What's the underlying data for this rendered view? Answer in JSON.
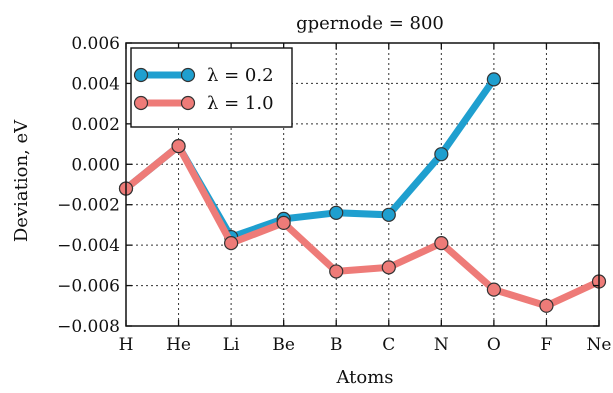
{
  "chart_data": {
    "type": "line",
    "title": "gpernode = 800",
    "xlabel": "Atoms",
    "ylabel": "Deviation, eV",
    "categories": [
      "H",
      "He",
      "Li",
      "Be",
      "B",
      "C",
      "N",
      "O",
      "F",
      "Ne"
    ],
    "ylim": [
      -0.008,
      0.006
    ],
    "yticks": [
      -0.008,
      -0.006,
      -0.004,
      -0.002,
      0.0,
      0.002,
      0.004,
      0.006
    ],
    "ytick_labels": [
      "−0.008",
      "−0.006",
      "−0.004",
      "−0.002",
      "0.000",
      "0.002",
      "0.004",
      "0.006"
    ],
    "grid": true,
    "legend_position": "top-left",
    "series": [
      {
        "name": "λ = 0.2",
        "color": "#1f9fcf",
        "values": [
          -0.0012,
          0.0009,
          -0.0036,
          -0.0027,
          -0.0024,
          -0.0025,
          0.0005,
          0.0042,
          null,
          null
        ]
      },
      {
        "name": "λ = 1.0",
        "color": "#ee7b78",
        "values": [
          -0.0012,
          0.0009,
          -0.0039,
          -0.0029,
          -0.0053,
          -0.0051,
          -0.0039,
          -0.0062,
          -0.007,
          -0.0058
        ]
      }
    ]
  }
}
